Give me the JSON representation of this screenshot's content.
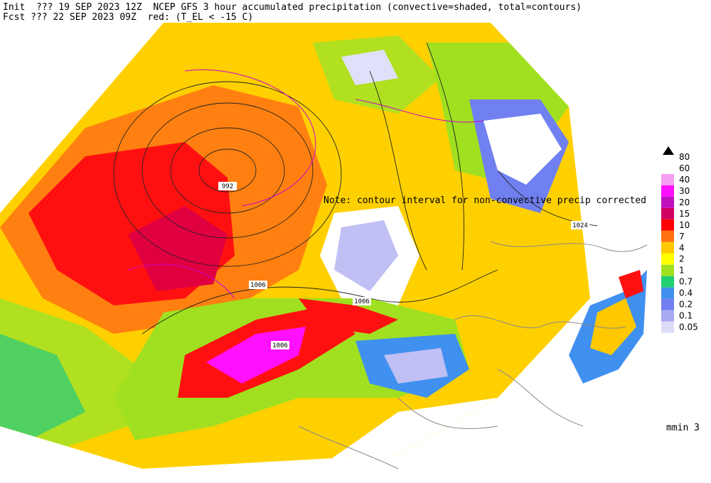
{
  "header": {
    "line1": "Init  ??? 19 SEP 2023 12Z  NCEP GFS 3 hour accumulated precipitation (convective=shaded, total=contours)",
    "line2": "Fcst ??? 22 SEP 2023 09Z  red: (T_EL < -15 C)"
  },
  "note": "Note: contour interval for non-convective precip corrected",
  "contour_labels": [
    "992",
    "1006",
    "1006",
    "1006",
    "1024"
  ],
  "legend": {
    "items": [
      {
        "label": "80",
        "color": null
      },
      {
        "label": "60",
        "color": null
      },
      {
        "label": "40",
        "color": "#f4a0f0"
      },
      {
        "label": "30",
        "color": "#ff10ff"
      },
      {
        "label": "20",
        "color": "#c010c0"
      },
      {
        "label": "15",
        "color": "#d00060"
      },
      {
        "label": "10",
        "color": "#ff0000"
      },
      {
        "label": "7",
        "color": "#ff7010"
      },
      {
        "label": "4",
        "color": "#ffc800"
      },
      {
        "label": "2",
        "color": "#ffff00"
      },
      {
        "label": "1",
        "color": "#a0e020"
      },
      {
        "label": "0.7",
        "color": "#20d070"
      },
      {
        "label": "0.4",
        "color": "#4090f0"
      },
      {
        "label": "0.2",
        "color": "#7080f0"
      },
      {
        "label": "0.1",
        "color": "#a8a8f0"
      },
      {
        "label": "0.05",
        "color": "#dcdcf8"
      }
    ]
  },
  "footer": "mmin 3"
}
